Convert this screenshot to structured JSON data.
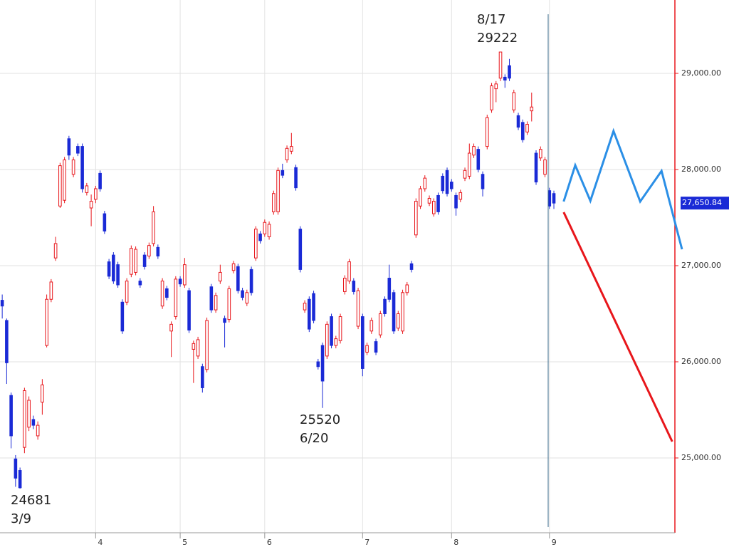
{
  "chart_data": {
    "type": "candlestick",
    "categories": [
      null,
      null,
      null,
      null,
      null,
      null,
      null,
      null,
      null,
      null,
      null,
      null,
      null,
      null,
      null,
      null,
      null,
      null,
      null,
      null,
      null,
      "4",
      null,
      null,
      null,
      null,
      null,
      null,
      null,
      null,
      null,
      null,
      null,
      null,
      null,
      null,
      null,
      null,
      null,
      null,
      "5",
      null,
      null,
      null,
      null,
      null,
      null,
      null,
      null,
      null,
      null,
      null,
      null,
      null,
      null,
      null,
      null,
      null,
      null,
      "6",
      null,
      null,
      null,
      null,
      null,
      null,
      null,
      null,
      null,
      null,
      null,
      null,
      null,
      null,
      null,
      null,
      null,
      null,
      null,
      null,
      null,
      "7",
      null,
      null,
      null,
      null,
      null,
      null,
      null,
      null,
      null,
      null,
      null,
      null,
      null,
      null,
      null,
      null,
      null,
      null,
      null,
      "8",
      null,
      null,
      null,
      null,
      null,
      null,
      null,
      null,
      null,
      null,
      null,
      null,
      null,
      null,
      null,
      null,
      null,
      null,
      null,
      null,
      null,
      "9",
      null
    ],
    "open": [
      26640,
      26430,
      25650,
      24990,
      24870,
      25110,
      25320,
      25400,
      25230,
      25580,
      26170,
      26650,
      27080,
      27620,
      27680,
      28320,
      27950,
      28240,
      28240,
      27760,
      27600,
      27690,
      27960,
      27540,
      27040,
      27110,
      27010,
      26620,
      26620,
      26910,
      26930,
      26840,
      27110,
      27100,
      27230,
      27190,
      26580,
      26760,
      26320,
      26470,
      26860,
      26800,
      26740,
      26130,
      26060,
      25950,
      25920,
      26780,
      26540,
      26840,
      26450,
      26440,
      26950,
      26990,
      26740,
      26610,
      26960,
      27080,
      27330,
      27330,
      27300,
      27560,
      27560,
      27990,
      28100,
      28190,
      28020,
      27380,
      26540,
      26650,
      26710,
      26000,
      26170,
      26060,
      26470,
      26170,
      26220,
      26730,
      26840,
      26840,
      26370,
      26470,
      26100,
      26320,
      26210,
      26280,
      26650,
      26870,
      26720,
      26350,
      26320,
      26720,
      27020,
      27320,
      27620,
      27800,
      27650,
      27540,
      27730,
      27930,
      27990,
      27870,
      27730,
      27690,
      27910,
      27930,
      28150,
      28210,
      27950,
      28240,
      28620,
      28840,
      28950,
      28960,
      29080,
      28620,
      28560,
      28490,
      28390,
      28610,
      28170,
      28120,
      27950,
      27780,
      27750
    ],
    "high": [
      26700,
      26450,
      25680,
      25030,
      24900,
      25730,
      25640,
      25440,
      25380,
      25820,
      26700,
      26860,
      27300,
      28070,
      28130,
      28350,
      28130,
      28270,
      28270,
      27860,
      27740,
      27830,
      27990,
      27570,
      27070,
      27140,
      27040,
      26650,
      26870,
      27210,
      27200,
      26870,
      27140,
      27240,
      27620,
      27220,
      26870,
      26790,
      26420,
      26890,
      26890,
      27080,
      26770,
      26220,
      26260,
      25980,
      26460,
      26810,
      26720,
      27010,
      26480,
      26790,
      27050,
      27020,
      26770,
      26750,
      26990,
      27410,
      27360,
      27480,
      27460,
      27780,
      28020,
      28060,
      28250,
      28380,
      28050,
      27410,
      26640,
      26680,
      26740,
      26030,
      26200,
      26420,
      26500,
      26270,
      26500,
      26900,
      27070,
      26870,
      26770,
      26500,
      26200,
      26460,
      26240,
      26530,
      26680,
      27010,
      26750,
      26530,
      26750,
      26830,
      27050,
      27700,
      27830,
      27940,
      27730,
      27700,
      27760,
      27960,
      28020,
      27900,
      27760,
      27790,
      28020,
      28270,
      28270,
      28240,
      27980,
      28570,
      28900,
      28920,
      29222,
      28990,
      29150,
      28830,
      28590,
      28520,
      28500,
      28800,
      28200,
      28240,
      28130,
      27810,
      27780
    ],
    "low": [
      26450,
      25770,
      25100,
      24700,
      24681,
      25050,
      25280,
      25300,
      25190,
      25450,
      26150,
      26620,
      27050,
      27600,
      27650,
      28100,
      27920,
      28140,
      27760,
      27730,
      27410,
      27650,
      27770,
      27330,
      26860,
      26810,
      26770,
      26290,
      26590,
      26880,
      26900,
      26770,
      26960,
      27070,
      27200,
      27070,
      26550,
      26640,
      26050,
      26440,
      26780,
      26770,
      26300,
      25780,
      26030,
      25680,
      25890,
      26510,
      26510,
      26810,
      26150,
      26410,
      26920,
      26710,
      26640,
      26580,
      26690,
      27050,
      27230,
      27300,
      27270,
      27530,
      27530,
      27910,
      28070,
      28160,
      27780,
      26930,
      26510,
      26310,
      26400,
      25920,
      25520,
      26030,
      26140,
      26140,
      26190,
      26700,
      26810,
      26700,
      26340,
      25850,
      26070,
      26290,
      26070,
      26250,
      26470,
      26620,
      26290,
      26320,
      26290,
      26690,
      26930,
      27290,
      27590,
      27770,
      27620,
      27510,
      27530,
      27750,
      27720,
      27770,
      27520,
      27660,
      27880,
      27900,
      28120,
      27970,
      27720,
      28210,
      28590,
      28700,
      28920,
      28850,
      28920,
      28590,
      28410,
      28280,
      28360,
      28500,
      27840,
      28090,
      27920,
      27590,
      27590
    ],
    "close": [
      26580,
      25990,
      25230,
      24790,
      24690,
      25700,
      25600,
      25340,
      25340,
      25760,
      26650,
      26830,
      27230,
      28040,
      28100,
      28150,
      28100,
      28170,
      27800,
      27830,
      27670,
      27800,
      27800,
      27360,
      26890,
      26840,
      26800,
      26320,
      26840,
      27180,
      27170,
      26800,
      26990,
      27210,
      27560,
      27100,
      26840,
      26670,
      26390,
      26860,
      26810,
      27010,
      26330,
      26190,
      26230,
      25730,
      26430,
      26540,
      26690,
      26930,
      26410,
      26760,
      27020,
      26740,
      26670,
      26720,
      26720,
      27380,
      27260,
      27450,
      27430,
      27750,
      27990,
      27940,
      28220,
      28240,
      27810,
      26960,
      26610,
      26340,
      26430,
      25950,
      25800,
      26390,
      26170,
      26240,
      26470,
      26870,
      27040,
      26730,
      26740,
      25930,
      26170,
      26430,
      26100,
      26500,
      26500,
      26650,
      26320,
      26500,
      26720,
      26800,
      26960,
      27670,
      27800,
      27910,
      27700,
      27670,
      27560,
      27780,
      27750,
      27800,
      27600,
      27760,
      27990,
      28170,
      28240,
      28000,
      27800,
      28540,
      28870,
      28890,
      29222,
      28930,
      28950,
      28800,
      28440,
      28310,
      28470,
      28650,
      27870,
      28210,
      28100,
      27620,
      27650.84
    ],
    "up_color": "#e8161b",
    "down_color": "#1a2ad6",
    "projections": [
      {
        "color": "#2b8fe6",
        "x": [
          126.2,
          128.8,
          132.2,
          137.4,
          143.4,
          148.2,
          152.8
        ],
        "values": [
          27667,
          28044,
          27674,
          28400,
          27667,
          27985,
          27170
        ]
      },
      {
        "color": "#e8161b",
        "x": [
          126.2,
          150.6
        ],
        "values": [
          27556,
          25170
        ]
      }
    ],
    "last_price": {
      "value": 27650.84,
      "label": "27,650.84"
    },
    "annotations": [
      {
        "lines": [
          "8/17",
          "29222"
        ]
      },
      {
        "lines": [
          "25520",
          "6/20"
        ]
      },
      {
        "lines": [
          "24681",
          "3/9"
        ]
      }
    ],
    "ylim": [
      24222,
      29763
    ],
    "yticks": [
      {
        "value": 25000,
        "label": "25,000.00"
      },
      {
        "value": 26000,
        "label": "26,000.00"
      },
      {
        "value": 27000,
        "label": "27,000.00"
      },
      {
        "value": 28000,
        "label": "28,000.00"
      },
      {
        "value": 29000,
        "label": "29,000.00"
      }
    ],
    "xlim": [
      -0.5,
      151.2
    ],
    "grid": true
  }
}
